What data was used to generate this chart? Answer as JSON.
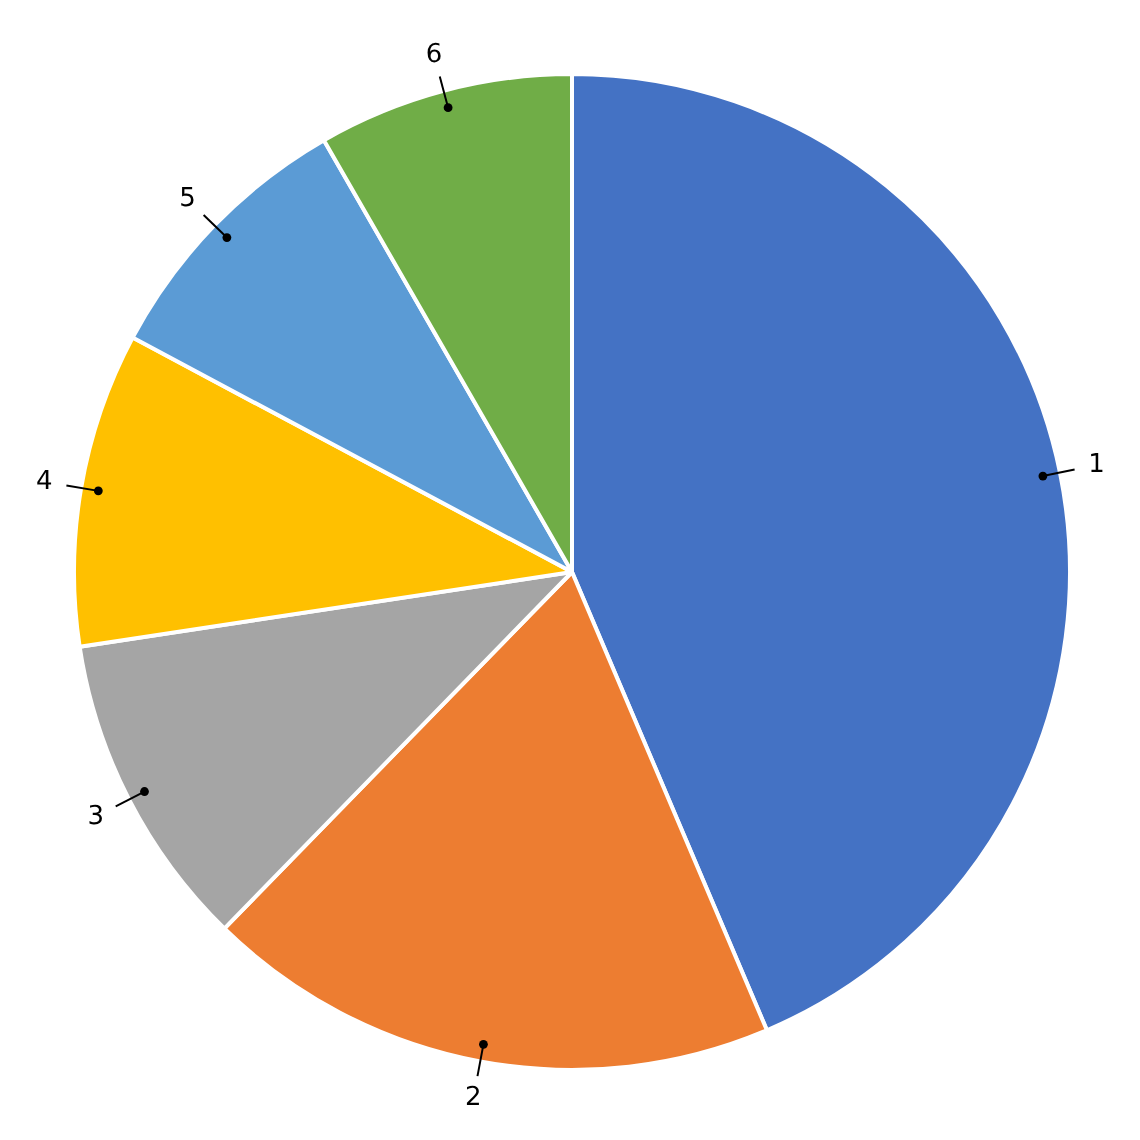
{
  "chart_data": {
    "type": "pie",
    "categories": [
      "1",
      "2",
      "3",
      "4",
      "5",
      "6"
    ],
    "values": [
      43.6,
      18.7,
      10.3,
      10.2,
      8.9,
      8.3
    ],
    "colors": [
      "#4472c4",
      "#ed7d31",
      "#a5a5a5",
      "#ffc000",
      "#5b9bd5",
      "#70ad47"
    ],
    "legend": false
  }
}
